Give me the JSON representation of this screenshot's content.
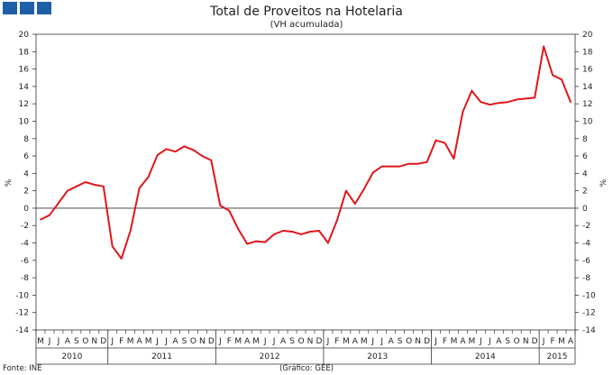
{
  "header": {
    "logo_color": "#1f5fa8"
  },
  "chart_data": {
    "type": "line",
    "title": "Total de Proveitos na Hotelaria",
    "subtitle": "(VH acumulada)",
    "ylabel": "%",
    "ylim": [
      -14,
      20
    ],
    "yticks": [
      20,
      18,
      16,
      14,
      12,
      10,
      8,
      6,
      4,
      2,
      0,
      -2,
      -4,
      -6,
      -8,
      -10,
      -12,
      -14
    ],
    "months": [
      "M",
      "J",
      "J",
      "A",
      "S",
      "O",
      "N",
      "D",
      "J",
      "F",
      "M",
      "A",
      "M",
      "J",
      "J",
      "A",
      "S",
      "O",
      "N",
      "D",
      "J",
      "F",
      "M",
      "A",
      "M",
      "J",
      "J",
      "A",
      "S",
      "O",
      "N",
      "D",
      "J",
      "F",
      "M",
      "A",
      "M",
      "J",
      "J",
      "A",
      "S",
      "O",
      "N",
      "D",
      "J",
      "F",
      "M",
      "A",
      "M",
      "J",
      "J",
      "A",
      "S",
      "O",
      "N",
      "D",
      "J",
      "F",
      "M",
      "A"
    ],
    "years": [
      {
        "label": "2010",
        "start": 0,
        "end": 7
      },
      {
        "label": "2011",
        "start": 8,
        "end": 19
      },
      {
        "label": "2012",
        "start": 20,
        "end": 31
      },
      {
        "label": "2013",
        "start": 32,
        "end": 43
      },
      {
        "label": "2014",
        "start": 44,
        "end": 55
      },
      {
        "label": "2015",
        "start": 56,
        "end": 59
      }
    ],
    "series": [
      {
        "color": "#e0161b",
        "values": [
          -1.3,
          -0.8,
          0.6,
          2.0,
          2.5,
          3.0,
          2.7,
          2.5,
          -4.4,
          -5.8,
          -2.6,
          2.3,
          3.6,
          6.1,
          6.8,
          6.5,
          7.1,
          6.7,
          6.0,
          5.5,
          0.3,
          -0.3,
          -2.4,
          -4.1,
          -3.8,
          -3.9,
          -3.0,
          -2.6,
          -2.7,
          -3.0,
          -2.7,
          -2.6,
          -4.0,
          -1.4,
          2.0,
          0.5,
          2.2,
          4.1,
          4.8,
          4.8,
          4.8,
          5.1,
          5.1,
          5.3,
          7.8,
          7.5,
          5.7,
          11.1,
          13.5,
          12.2,
          11.9,
          12.1,
          12.2,
          12.5,
          12.6,
          12.7,
          18.6,
          15.3,
          14.8,
          12.2
        ]
      }
    ],
    "grid": false,
    "zero_line": true
  },
  "footer": {
    "source": "Fonte: INE",
    "credit": "(Gráfico: GEE)"
  }
}
